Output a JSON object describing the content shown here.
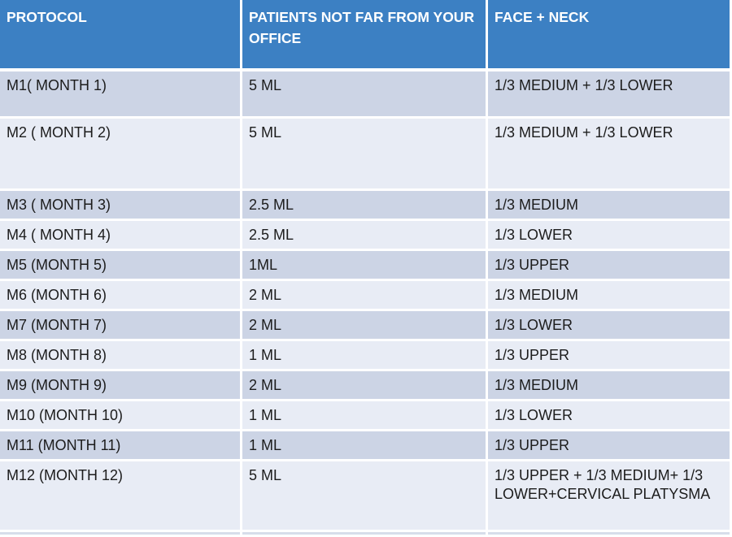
{
  "table": {
    "columns": [
      {
        "label": "PROTOCOL"
      },
      {
        "label": "PATIENTS NOT FAR FROM YOUR OFFICE"
      },
      {
        "label": "FACE + NECK"
      }
    ],
    "rows": [
      {
        "protocol": "M1( MONTH 1)",
        "patients": "5 ML",
        "face_neck": "1/3 MEDIUM + 1/3 LOWER"
      },
      {
        "protocol": "M2 ( MONTH 2)",
        "patients": "5 ML",
        "face_neck": "1/3 MEDIUM + 1/3 LOWER"
      },
      {
        "protocol": "M3 ( MONTH 3)",
        "patients": "2.5 ML",
        "face_neck": "1/3 MEDIUM"
      },
      {
        "protocol": "M4 ( MONTH 4)",
        "patients": "2.5 ML",
        "face_neck": "1/3 LOWER"
      },
      {
        "protocol": "M5 (MONTH 5)",
        "patients": "1ML",
        "face_neck": "1/3 UPPER"
      },
      {
        "protocol": "M6 (MONTH 6)",
        "patients": "2 ML",
        "face_neck": "1/3 MEDIUM"
      },
      {
        "protocol": "M7 (MONTH 7)",
        "patients": "2 ML",
        "face_neck": "1/3 LOWER"
      },
      {
        "protocol": "M8 (MONTH 8)",
        "patients": "1 ML",
        "face_neck": "1/3 UPPER"
      },
      {
        "protocol": "M9 (MONTH 9)",
        "patients": "2 ML",
        "face_neck": "1/3 MEDIUM"
      },
      {
        "protocol": "M10 (MONTH 10)",
        "patients": "1 ML",
        "face_neck": "1/3 LOWER"
      },
      {
        "protocol": "M11 (MONTH 11)",
        "patients": "1 ML",
        "face_neck": "1/3 UPPER"
      },
      {
        "protocol": "M12 (MONTH 12)",
        "patients": "5 ML",
        "face_neck": "1/3 UPPER + 1/3 MEDIUM+ 1/3 LOWER+CERVICAL PLATYSMA"
      }
    ],
    "colors": {
      "header_bg": "#3c80c3",
      "header_text": "#ffffff",
      "row_dark": "#ccd4e5",
      "row_light": "#e8ecf5",
      "separator": "#ffffff",
      "body_text": "#1c1c1c"
    }
  }
}
